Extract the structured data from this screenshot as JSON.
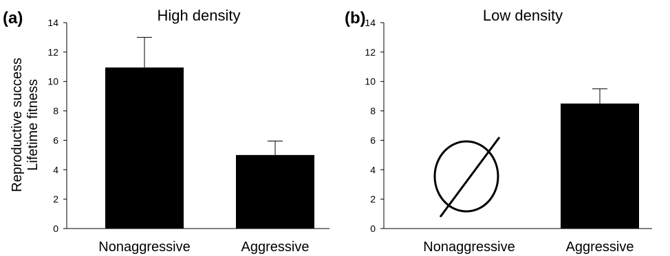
{
  "figure": {
    "ylabel_line1": "Reproductive success",
    "ylabel_line2": "Lifetime fitness"
  },
  "chart_data": [
    {
      "type": "bar",
      "panel_label": "(a)",
      "title": "High density",
      "categories": [
        "Nonaggressive",
        "Aggressive"
      ],
      "values": [
        10.95,
        5.0
      ],
      "error": [
        2.05,
        0.95
      ],
      "ylim": [
        0,
        14
      ],
      "yticks": [
        "0",
        "2",
        "4",
        "6",
        "8",
        "10",
        "12",
        "14"
      ],
      "bar_color": "#000000",
      "grid": false
    },
    {
      "type": "bar",
      "panel_label": "(b)",
      "title": "Low density",
      "categories": [
        "Nonaggressive",
        "Aggressive"
      ],
      "values": [
        null,
        8.5
      ],
      "error": [
        null,
        1.0
      ],
      "ylim": [
        0,
        14
      ],
      "yticks": [
        "0",
        "2",
        "4",
        "6",
        "8",
        "10",
        "12",
        "14"
      ],
      "bar_color": "#000000",
      "grid": false,
      "empty_set_marker": "Nonaggressive"
    }
  ]
}
